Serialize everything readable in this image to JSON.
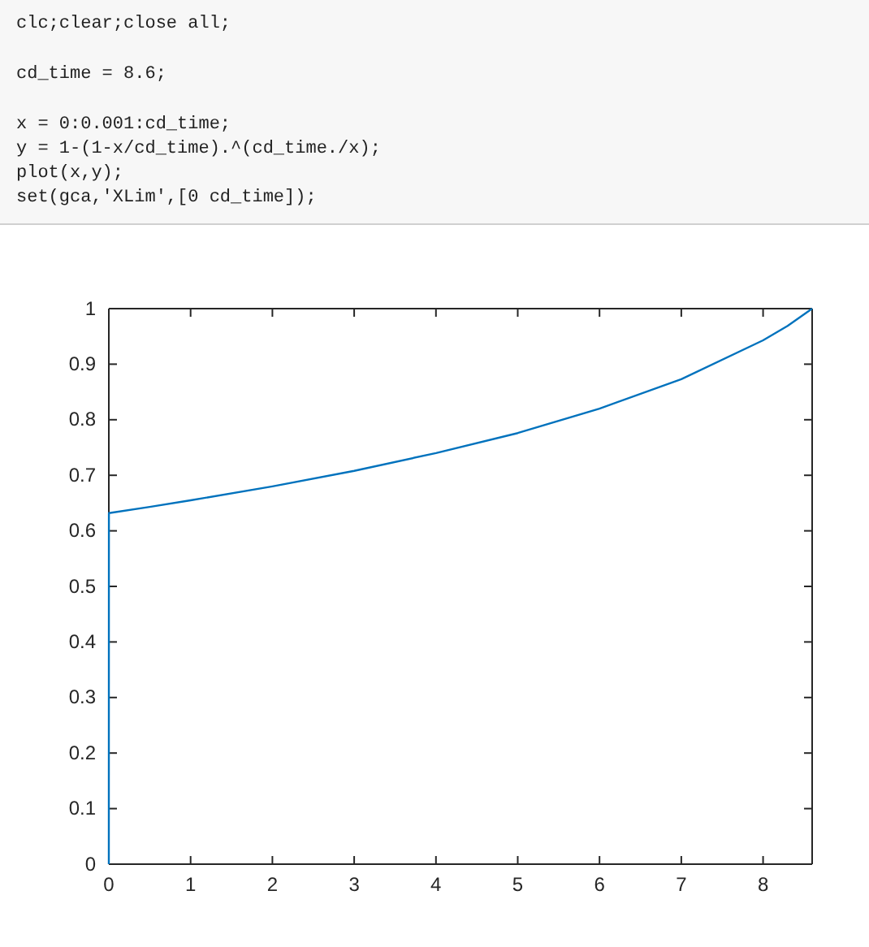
{
  "chart_data": {
    "type": "line",
    "annotations": [
      "clc;clear;close all;",
      "cd_time = 8.6;",
      "x = 0:0.001:cd_time;",
      "y = 1-(1-x/cd_time).^(cd_time./x);",
      "plot(x,y);",
      "set(gca,'XLim',[0 cd_time]);"
    ],
    "x": [
      0,
      0.001,
      0.5,
      1,
      2,
      3,
      4,
      5,
      6,
      7,
      8,
      8.3,
      8.6
    ],
    "series": [
      {
        "color": "#0072bd",
        "values": [
          0,
          0.632,
          0.643,
          0.655,
          0.68,
          0.708,
          0.74,
          0.776,
          0.82,
          0.873,
          0.943,
          0.969,
          1
        ]
      }
    ],
    "xlim": [
      0,
      8.6
    ],
    "xticks": [
      0,
      1,
      2,
      3,
      4,
      5,
      6,
      7,
      8
    ],
    "ylim": [
      0,
      1
    ],
    "yticks": [
      0,
      0.1,
      0.2,
      0.3,
      0.4,
      0.5,
      0.6,
      0.7,
      0.8,
      0.9,
      1
    ],
    "grid": false,
    "line_style": "solid",
    "marker": "none"
  }
}
